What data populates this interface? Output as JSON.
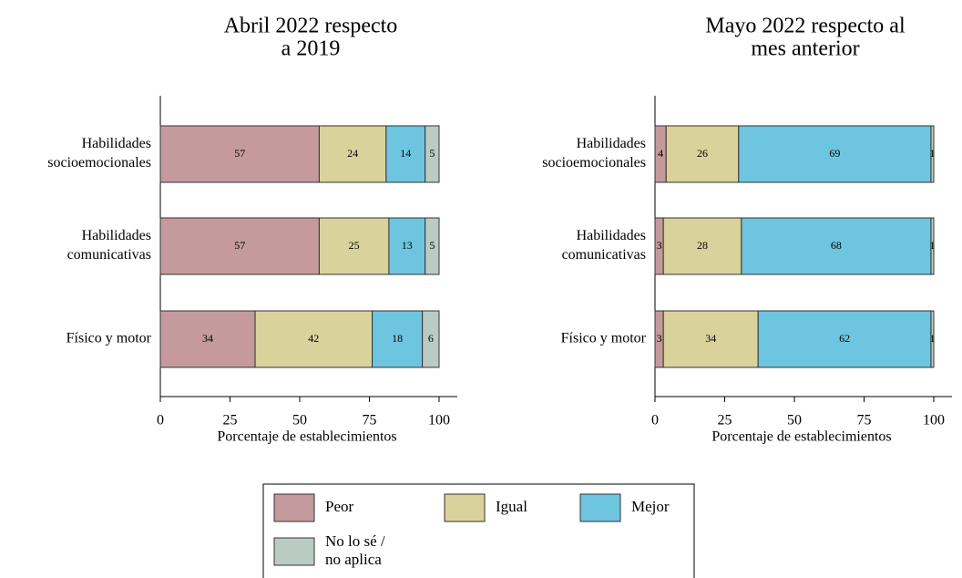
{
  "legend": {
    "names": [
      "Peor",
      "Igual",
      "Mejor",
      [
        "No lo sé /",
        "no aplica"
      ]
    ],
    "colors": [
      "#c49a9c",
      "#d9d29a",
      "#6ec5e0",
      "#b9cbc3"
    ]
  },
  "chart_data": [
    {
      "type": "stacked_bar_horizontal",
      "title": [
        "Abril 2022 respecto",
        "a 2019"
      ],
      "categories": [
        [
          "Habilidades",
          "socioemocionales"
        ],
        [
          "Habilidades",
          "comunicativas"
        ],
        [
          "Físico y motor"
        ]
      ],
      "series": [
        {
          "values": [
            57,
            57,
            34
          ]
        },
        {
          "values": [
            24,
            25,
            42
          ]
        },
        {
          "values": [
            14,
            13,
            18
          ]
        },
        {
          "values": [
            5,
            5,
            6
          ]
        }
      ],
      "xlim": [
        0,
        100
      ],
      "xticks": [
        0,
        25,
        50,
        75,
        100
      ],
      "x_label": "Porcentaje de establecimientos"
    },
    {
      "type": "stacked_bar_horizontal",
      "title": [
        "Mayo 2022 respecto al",
        "mes anterior"
      ],
      "categories": [
        [
          "Habilidades",
          "socioemocionales"
        ],
        [
          "Habilidades",
          "comunicativas"
        ],
        [
          "Físico y motor"
        ]
      ],
      "series": [
        {
          "values": [
            4,
            3,
            3
          ]
        },
        {
          "values": [
            26,
            28,
            34
          ]
        },
        {
          "values": [
            69,
            68,
            62
          ]
        },
        {
          "values": [
            1,
            1,
            1
          ]
        }
      ],
      "xlim": [
        0,
        100
      ],
      "xticks": [
        0,
        25,
        50,
        75,
        100
      ],
      "x_label": "Porcentaje de establecimientos"
    }
  ]
}
